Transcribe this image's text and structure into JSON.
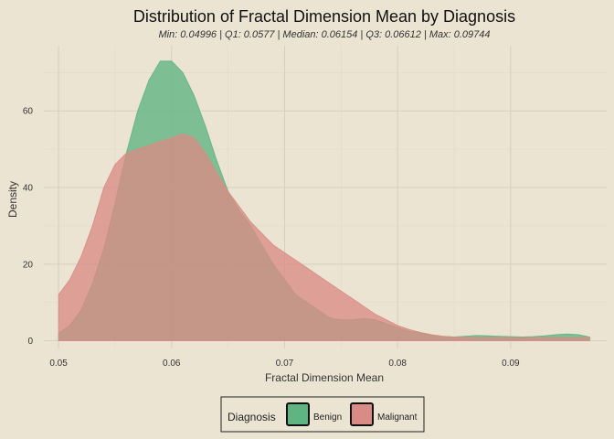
{
  "chart_data": {
    "type": "area",
    "title": "Distribution of Fractal Dimension Mean by Diagnosis",
    "subtitle": "Min: 0.04996 | Q1: 0.0577 | Median: 0.06154 | Q3: 0.06612 | Max: 0.09744",
    "xlabel": "Fractal Dimension Mean",
    "ylabel": "Density",
    "xlim": [
      0.0487,
      0.0985
    ],
    "ylim": [
      -2,
      77
    ],
    "x_ticks": [
      {
        "value": 0.05,
        "label": "0.05"
      },
      {
        "value": 0.06,
        "label": "0.06"
      },
      {
        "value": 0.07,
        "label": "0.07"
      },
      {
        "value": 0.08,
        "label": "0.08"
      },
      {
        "value": 0.09,
        "label": "0.09"
      }
    ],
    "y_ticks": [
      {
        "value": 0,
        "label": "0"
      },
      {
        "value": 20,
        "label": "20"
      },
      {
        "value": 40,
        "label": "40"
      },
      {
        "value": 60,
        "label": "60"
      }
    ],
    "grid": true,
    "legend": {
      "title": "Diagnosis",
      "position": "bottom"
    },
    "series": [
      {
        "name": "Benign",
        "color": "#5fb482",
        "x": [
          0.05,
          0.051,
          0.052,
          0.053,
          0.054,
          0.055,
          0.056,
          0.057,
          0.058,
          0.059,
          0.06,
          0.061,
          0.062,
          0.063,
          0.064,
          0.065,
          0.066,
          0.067,
          0.068,
          0.069,
          0.07,
          0.071,
          0.072,
          0.073,
          0.074,
          0.075,
          0.076,
          0.077,
          0.078,
          0.079,
          0.08,
          0.081,
          0.082,
          0.083,
          0.084,
          0.085,
          0.086,
          0.087,
          0.088,
          0.089,
          0.09,
          0.091,
          0.092,
          0.093,
          0.094,
          0.095,
          0.096,
          0.097
        ],
        "values": [
          2,
          4,
          8,
          15,
          24,
          36,
          49,
          60,
          68,
          73,
          73,
          70,
          64,
          56,
          47,
          39,
          34,
          30,
          25,
          20,
          16,
          12,
          10,
          8,
          6,
          5.5,
          5.5,
          5.8,
          5.5,
          4.5,
          3.5,
          2.5,
          2,
          1.5,
          1.2,
          1.0,
          1.2,
          1.4,
          1.3,
          1.2,
          1.1,
          1.0,
          1.1,
          1.3,
          1.6,
          1.8,
          1.6,
          1.0
        ]
      },
      {
        "name": "Malignant",
        "color": "#d98c85",
        "x": [
          0.05,
          0.051,
          0.052,
          0.053,
          0.054,
          0.055,
          0.056,
          0.057,
          0.058,
          0.059,
          0.06,
          0.061,
          0.062,
          0.063,
          0.064,
          0.065,
          0.066,
          0.067,
          0.068,
          0.069,
          0.07,
          0.071,
          0.072,
          0.073,
          0.074,
          0.075,
          0.076,
          0.077,
          0.078,
          0.079,
          0.08,
          0.081,
          0.082,
          0.083,
          0.084,
          0.085,
          0.086,
          0.087,
          0.088,
          0.089,
          0.09,
          0.091,
          0.092,
          0.093,
          0.094,
          0.095,
          0.096,
          0.097
        ],
        "values": [
          12,
          16,
          22,
          30,
          40,
          46,
          49,
          50,
          51,
          52,
          53,
          54,
          53,
          49,
          44,
          39,
          35,
          31,
          28,
          25,
          23,
          21,
          19,
          17,
          15,
          13,
          11,
          9,
          7,
          5.5,
          4,
          3,
          2.2,
          1.6,
          1.2,
          1.0,
          0.9,
          0.8,
          0.8,
          0.8,
          0.8,
          0.8,
          0.8,
          0.8,
          0.8,
          0.8,
          0.8,
          0.8
        ]
      }
    ]
  }
}
